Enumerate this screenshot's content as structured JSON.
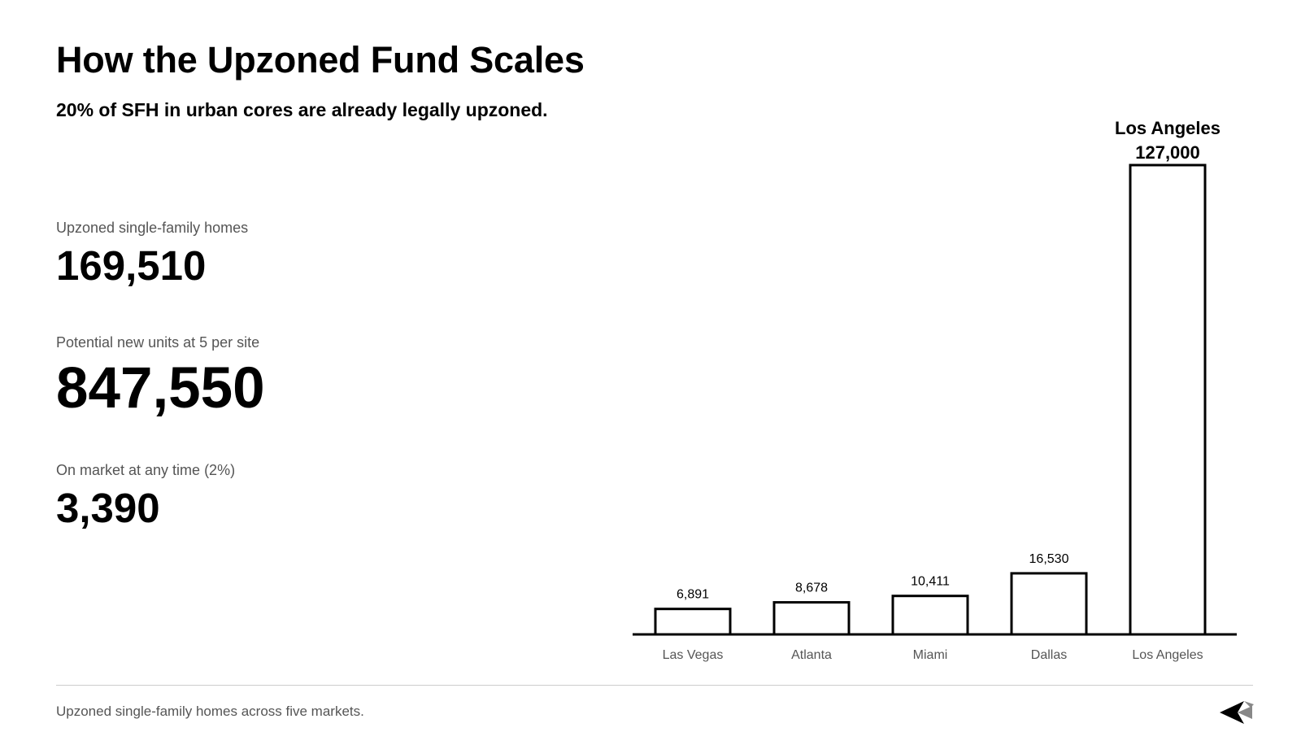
{
  "header": {
    "title": "How the Upzoned Fund Scales",
    "subtitle": "20% of SFH in urban cores are already legally upzoned."
  },
  "stats": [
    {
      "label": "Upzoned single-family homes",
      "value": "169,510"
    },
    {
      "label": "Potential new units at 5 per site",
      "value": "847,550"
    },
    {
      "label": "On market at any time (2%)",
      "value": "3,390"
    }
  ],
  "chart_data": {
    "type": "bar",
    "categories": [
      "Las Vegas",
      "Atlanta",
      "Miami",
      "Dallas",
      "Los Angeles"
    ],
    "values": [
      6891,
      8678,
      10411,
      16530,
      127000
    ],
    "value_labels": [
      "6,891",
      "8,678",
      "10,411",
      "16,530",
      "127,000"
    ],
    "highlight": {
      "category": "Los Angeles",
      "value_label": "127,000"
    },
    "ylim": [
      0,
      127000
    ],
    "grid": false,
    "bar_fill": "#ffffff",
    "bar_stroke": "#000000",
    "axis_color": "#000000"
  },
  "footer": {
    "note": "Upzoned single-family homes across five markets.",
    "logo_icon": "arrow-logo-icon"
  }
}
